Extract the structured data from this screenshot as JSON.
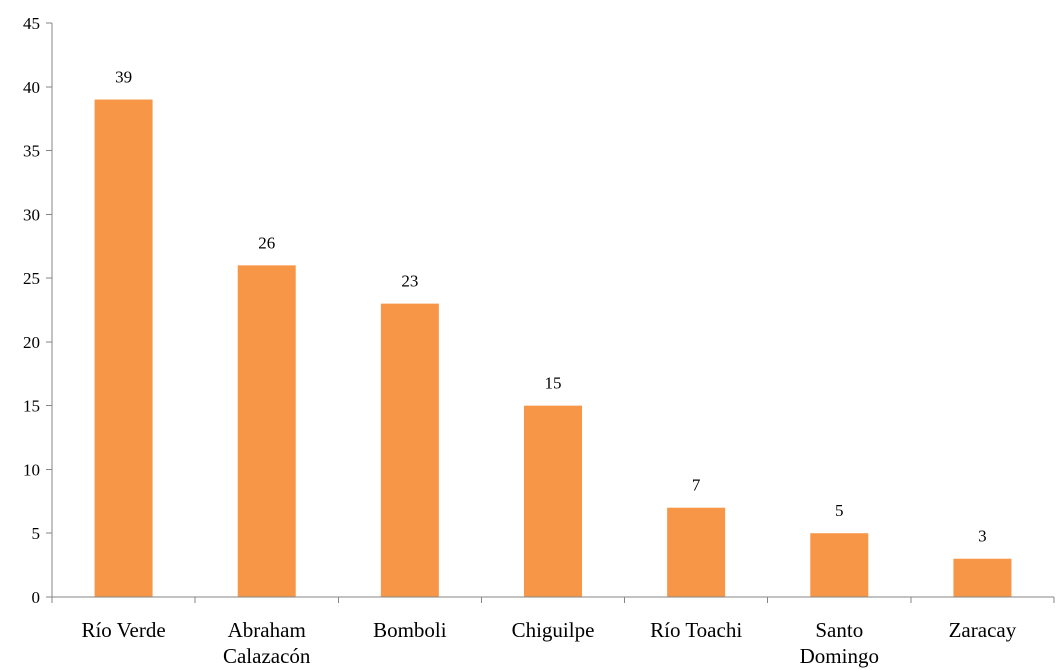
{
  "chart_data": {
    "type": "bar",
    "categories": [
      [
        "Río Verde"
      ],
      [
        "Abraham",
        "Calazacón"
      ],
      [
        "Bomboli"
      ],
      [
        "Chiguilpe"
      ],
      [
        "Río Toachi"
      ],
      [
        "Santo",
        "Domingo"
      ],
      [
        "Zaracay"
      ]
    ],
    "values": [
      39,
      26,
      23,
      15,
      7,
      5,
      3
    ],
    "data_labels": [
      "39",
      "26",
      "23",
      "15",
      "7",
      "5",
      "3"
    ],
    "ylim": [
      0,
      45
    ],
    "y_ticks": [
      0,
      5,
      10,
      15,
      20,
      25,
      30,
      35,
      40,
      45
    ],
    "title": "",
    "xlabel": "",
    "ylabel": "",
    "grid": false,
    "legend": "none",
    "colors": {
      "bar": "#F79646",
      "axis": "#868686",
      "text": "#000000"
    }
  }
}
